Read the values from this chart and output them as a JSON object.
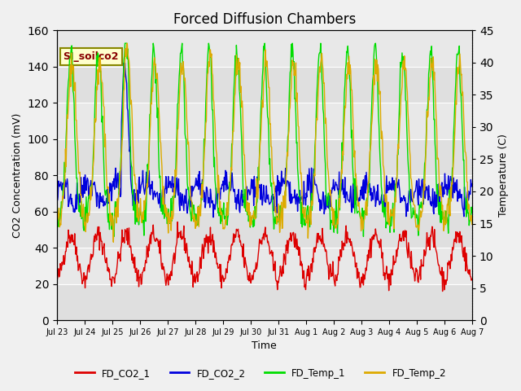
{
  "title": "Forced Diffusion Chambers",
  "xlabel": "Time",
  "ylabel_left": "CO2 Concentration (mV)",
  "ylabel_right": "Temperature (C)",
  "ylim_left": [
    0,
    160
  ],
  "ylim_right": [
    0,
    45
  ],
  "yticks_left": [
    0,
    20,
    40,
    60,
    80,
    100,
    120,
    140,
    160
  ],
  "yticks_right": [
    0,
    5,
    10,
    15,
    20,
    25,
    30,
    35,
    40,
    45
  ],
  "xtick_labels": [
    "Jul 23",
    "Jul 24",
    "Jul 25",
    "Jul 26",
    "Jul 27",
    "Jul 28",
    "Jul 29",
    "Jul 30",
    "Jul 31",
    "Aug 1",
    "Aug 2",
    "Aug 3",
    "Aug 4",
    "Aug 5",
    "Aug 6",
    "Aug 7"
  ],
  "colors": {
    "FD_CO2_1": "#dd0000",
    "FD_CO2_2": "#0000dd",
    "FD_Temp_1": "#00dd00",
    "FD_Temp_2": "#ddaa00"
  },
  "annotation_text": "SI_soilco2",
  "linewidth": 1.0,
  "plot_facecolor": "#e8e8e8",
  "fig_facecolor": "#f0f0f0",
  "n_points": 720,
  "n_days": 15
}
